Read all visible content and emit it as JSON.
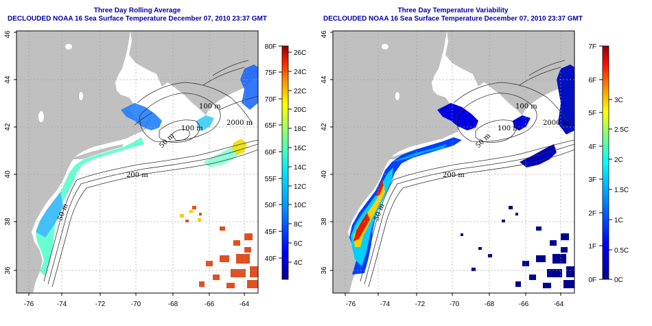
{
  "left_panel": {
    "title_line1": "Three Day Rolling Average",
    "title_line2": "DECLOUDED NOAA 16 Sea Surface Temperature December 07, 2010 23:37 GMT",
    "x_ticks": [
      "-76",
      "-74",
      "-72",
      "-70",
      "-68",
      "-66",
      "-64"
    ],
    "y_ticks": [
      "36",
      "38",
      "40",
      "42",
      "44",
      "46"
    ],
    "contour_labels": [
      "100 m",
      "2000 m",
      "100 m",
      "50 m",
      "200 m",
      "50 m"
    ],
    "colorbar_f_labels": [
      "80F",
      "75F",
      "70F",
      "65F",
      "60F",
      "55F",
      "50F",
      "45F",
      "40F"
    ],
    "colorbar_c_labels": [
      "26C",
      "24C",
      "22C",
      "20C",
      "18C",
      "16C",
      "14C",
      "12C",
      "10C",
      "8C",
      "6C",
      "4C"
    ]
  },
  "right_panel": {
    "title_line1": "Three Day Temperature Variability",
    "title_line2": "DECLOUDED NOAA 16 Sea Surface Temperature December 07, 2010 23:37 GMT",
    "x_ticks": [
      "-76",
      "-74",
      "-72",
      "-70",
      "-68",
      "-66",
      "-64"
    ],
    "y_ticks": [
      "36",
      "38",
      "40",
      "42",
      "44",
      "46"
    ],
    "contour_labels": [
      "100 m",
      "2000 m",
      "100 m",
      "50 m",
      "200 m",
      "50 m"
    ],
    "colorbar_f_labels": [
      "7F",
      "6F",
      "5F",
      "4F",
      "3F",
      "2F",
      "1F",
      "0F"
    ],
    "colorbar_c_labels": [
      "3C",
      "2.5C",
      "2C",
      "1.5C",
      "1C",
      "0.5C",
      "0C"
    ]
  },
  "colors": {
    "land": "#c0c0c0",
    "title": "#0000aa"
  }
}
